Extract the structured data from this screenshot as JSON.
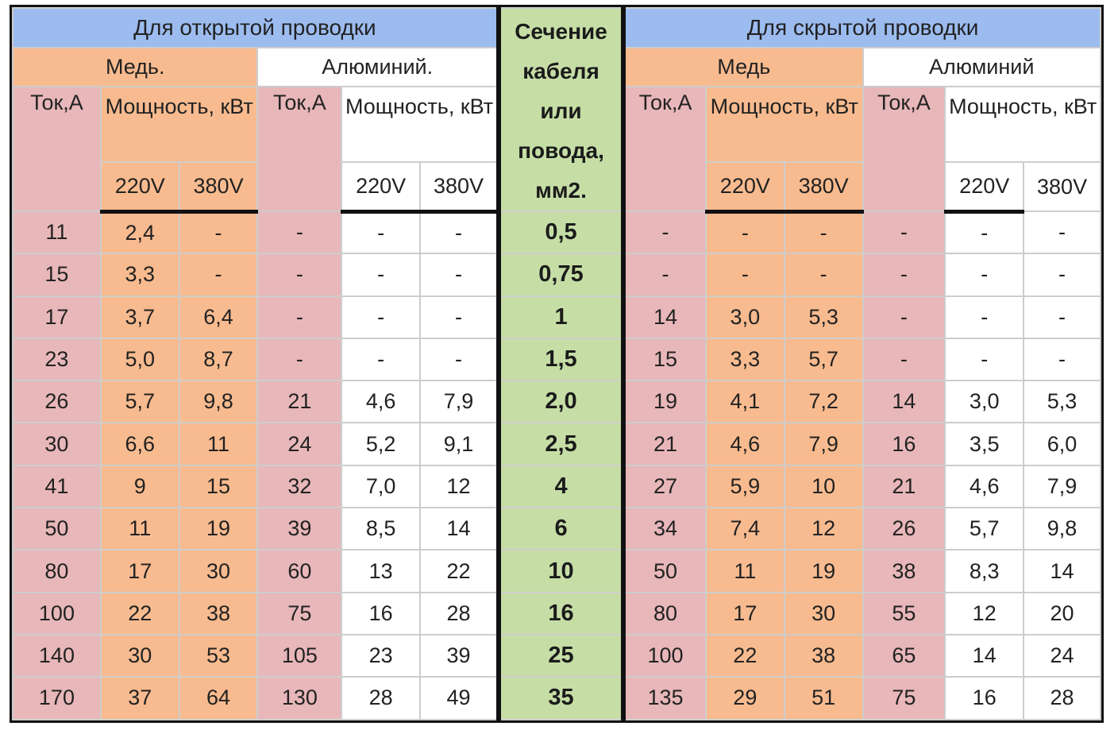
{
  "headers": {
    "open_wiring": "Для открытой проводки",
    "hidden_wiring": "Для скрытой проводки",
    "copper_open": "Медь.",
    "aluminum_open": "Алюминий.",
    "copper_hidden": "Медь",
    "aluminum_hidden": "Алюминий",
    "current": "Ток,А",
    "power": "Мощность, кВт",
    "v220": "220V",
    "v380": "380V",
    "section": "Сечение кабеля или повода, мм2."
  },
  "rows": [
    [
      "11",
      "2,4",
      "-",
      "-",
      "-",
      "-",
      "0,5",
      "-",
      "-",
      "-",
      "-",
      "-",
      "-"
    ],
    [
      "15",
      "3,3",
      "-",
      "-",
      "-",
      "-",
      "0,75",
      "-",
      "-",
      "-",
      "-",
      "-",
      "-"
    ],
    [
      "17",
      "3,7",
      "6,4",
      "-",
      "-",
      "-",
      "1",
      "14",
      "3,0",
      "5,3",
      "-",
      "-",
      "-"
    ],
    [
      "23",
      "5,0",
      "8,7",
      "-",
      "-",
      "-",
      "1,5",
      "15",
      "3,3",
      "5,7",
      "-",
      "-",
      "-"
    ],
    [
      "26",
      "5,7",
      "9,8",
      "21",
      "4,6",
      "7,9",
      "2,0",
      "19",
      "4,1",
      "7,2",
      "14",
      "3,0",
      "5,3"
    ],
    [
      "30",
      "6,6",
      "11",
      "24",
      "5,2",
      "9,1",
      "2,5",
      "21",
      "4,6",
      "7,9",
      "16",
      "3,5",
      "6,0"
    ],
    [
      "41",
      "9",
      "15",
      "32",
      "7,0",
      "12",
      "4",
      "27",
      "5,9",
      "10",
      "21",
      "4,6",
      "7,9"
    ],
    [
      "50",
      "11",
      "19",
      "39",
      "8,5",
      "14",
      "6",
      "34",
      "7,4",
      "12",
      "26",
      "5,7",
      "9,8"
    ],
    [
      "80",
      "17",
      "30",
      "60",
      "13",
      "22",
      "10",
      "50",
      "11",
      "19",
      "38",
      "8,3",
      "14"
    ],
    [
      "100",
      "22",
      "38",
      "75",
      "16",
      "28",
      "16",
      "80",
      "17",
      "30",
      "55",
      "12",
      "20"
    ],
    [
      "140",
      "30",
      "53",
      "105",
      "23",
      "39",
      "25",
      "100",
      "22",
      "38",
      "65",
      "14",
      "24"
    ],
    [
      "170",
      "37",
      "64",
      "130",
      "28",
      "49",
      "35",
      "135",
      "29",
      "51",
      "75",
      "16",
      "28"
    ]
  ],
  "colors": {
    "header_blue": "#9cbcf0",
    "copper": "#f8bb8f",
    "current": "#e8b7b9",
    "section": "#c6dea6",
    "white": "#ffffff"
  }
}
